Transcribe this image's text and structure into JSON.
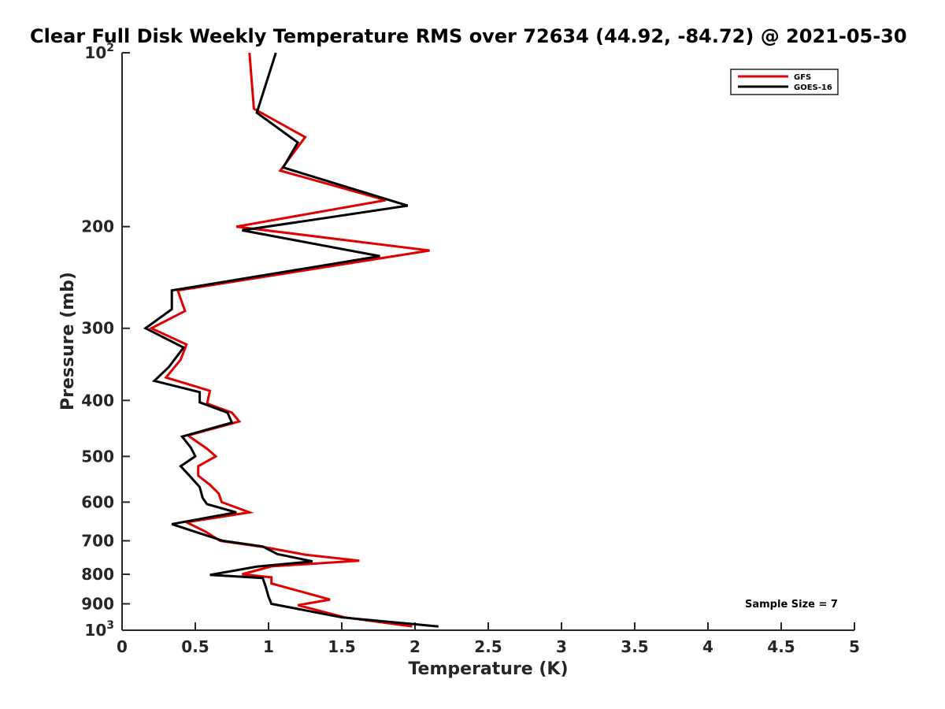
{
  "chart_data": {
    "type": "line",
    "title": "Clear Full Disk Weekly Temperature RMS over 72634 (44.92, -84.72) @ 2021-05-30",
    "xlabel": "Temperature (K)",
    "ylabel": "Pressure (mb)",
    "xlim": [
      0,
      5
    ],
    "ylim": [
      100,
      1000
    ],
    "y_scale": "log",
    "y_reversed": true,
    "grid": false,
    "legend_position": "top-right",
    "xticks": [
      0,
      0.5,
      1,
      1.5,
      2,
      2.5,
      3,
      3.5,
      4,
      4.5,
      5
    ],
    "xtick_labels": [
      "0",
      "0.5",
      "1",
      "1.5",
      "2",
      "2.5",
      "3",
      "3.5",
      "4",
      "4.5",
      "5"
    ],
    "yticks": [
      100,
      200,
      300,
      400,
      500,
      600,
      700,
      800,
      900,
      1000
    ],
    "ytick_labels": [
      {
        "base": "10",
        "exp": "2"
      },
      {
        "base": "200",
        "exp": ""
      },
      {
        "base": "300",
        "exp": ""
      },
      {
        "base": "400",
        "exp": ""
      },
      {
        "base": "500",
        "exp": ""
      },
      {
        "base": "600",
        "exp": ""
      },
      {
        "base": "700",
        "exp": ""
      },
      {
        "base": "800",
        "exp": ""
      },
      {
        "base": "900",
        "exp": ""
      },
      {
        "base": "10",
        "exp": "3"
      }
    ],
    "series": [
      {
        "name": "GFS",
        "color": "#e00000",
        "points": [
          [
            0.87,
            100
          ],
          [
            0.9,
            125
          ],
          [
            1.25,
            140
          ],
          [
            1.08,
            160
          ],
          [
            1.8,
            180
          ],
          [
            0.78,
            200
          ],
          [
            2.1,
            220
          ],
          [
            0.38,
            258
          ],
          [
            0.43,
            280
          ],
          [
            0.2,
            300
          ],
          [
            0.44,
            320
          ],
          [
            0.4,
            340
          ],
          [
            0.3,
            365
          ],
          [
            0.6,
            385
          ],
          [
            0.58,
            405
          ],
          [
            0.75,
            420
          ],
          [
            0.8,
            435
          ],
          [
            0.45,
            460
          ],
          [
            0.58,
            485
          ],
          [
            0.64,
            500
          ],
          [
            0.52,
            520
          ],
          [
            0.52,
            540
          ],
          [
            0.6,
            560
          ],
          [
            0.66,
            580
          ],
          [
            0.68,
            600
          ],
          [
            0.87,
            625
          ],
          [
            0.44,
            650
          ],
          [
            0.57,
            675
          ],
          [
            0.67,
            700
          ],
          [
            0.97,
            718
          ],
          [
            1.25,
            740
          ],
          [
            1.62,
            758
          ],
          [
            1.02,
            775
          ],
          [
            0.82,
            800
          ],
          [
            1.02,
            810
          ],
          [
            1.02,
            830
          ],
          [
            1.17,
            850
          ],
          [
            1.42,
            885
          ],
          [
            1.2,
            905
          ],
          [
            1.52,
            950
          ],
          [
            1.98,
            985
          ]
        ]
      },
      {
        "name": "GOES-16",
        "color": "#000000",
        "points": [
          [
            1.05,
            100
          ],
          [
            0.92,
            127
          ],
          [
            1.2,
            143
          ],
          [
            1.1,
            158
          ],
          [
            1.95,
            184
          ],
          [
            0.82,
            203
          ],
          [
            1.76,
            225
          ],
          [
            0.34,
            258
          ],
          [
            0.34,
            278
          ],
          [
            0.16,
            300
          ],
          [
            0.42,
            324
          ],
          [
            0.32,
            350
          ],
          [
            0.22,
            370
          ],
          [
            0.53,
            387
          ],
          [
            0.53,
            403
          ],
          [
            0.72,
            420
          ],
          [
            0.75,
            437
          ],
          [
            0.41,
            462
          ],
          [
            0.47,
            483
          ],
          [
            0.5,
            500
          ],
          [
            0.4,
            520
          ],
          [
            0.46,
            540
          ],
          [
            0.53,
            565
          ],
          [
            0.55,
            590
          ],
          [
            0.58,
            605
          ],
          [
            0.78,
            625
          ],
          [
            0.34,
            655
          ],
          [
            0.52,
            678
          ],
          [
            0.69,
            700
          ],
          [
            0.96,
            716
          ],
          [
            1.06,
            738
          ],
          [
            1.3,
            760
          ],
          [
            0.92,
            776
          ],
          [
            0.6,
            802
          ],
          [
            0.96,
            812
          ],
          [
            0.98,
            840
          ],
          [
            1.0,
            875
          ],
          [
            1.02,
            900
          ],
          [
            1.5,
            950
          ],
          [
            2.16,
            985
          ]
        ]
      }
    ],
    "annotations": [
      "Sample Size = 7"
    ]
  }
}
